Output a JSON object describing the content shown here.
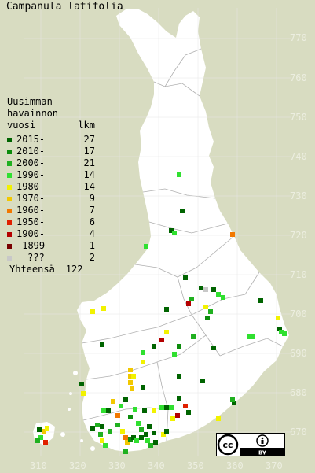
{
  "title": "Campanula latifolia",
  "legend": {
    "heading_lines": [
      "Uusimman",
      "havainnon"
    ],
    "col_year": "vuosi",
    "col_count": "lkm",
    "items": [
      {
        "label": "2015-",
        "count": "27",
        "color": "#006400"
      },
      {
        "label": "2010-",
        "count": "17",
        "color": "#0c8c0c"
      },
      {
        "label": "2000-",
        "count": "21",
        "color": "#20b020"
      },
      {
        "label": "1990-",
        "count": "14",
        "color": "#30e030"
      },
      {
        "label": "1980-",
        "count": "14",
        "color": "#f2f200"
      },
      {
        "label": "1970-",
        "count": "9",
        "color": "#f2c800"
      },
      {
        "label": "1960-",
        "count": "7",
        "color": "#f27800"
      },
      {
        "label": "1950-",
        "count": "6",
        "color": "#e02000"
      },
      {
        "label": "1900-",
        "count": "4",
        "color": "#b40000"
      },
      {
        "label": "-1899",
        "count": "1",
        "color": "#780000"
      },
      {
        "label": "???",
        "count": "2",
        "color": "#c8c8c8"
      }
    ],
    "total_label": "Yhteensä",
    "total_count": "122"
  },
  "y_ticks": [
    "770",
    "760",
    "750",
    "740",
    "730",
    "720",
    "710",
    "700",
    "690",
    "680",
    "670"
  ],
  "x_ticks": [
    "310",
    "320",
    "330",
    "340",
    "350",
    "360",
    "370"
  ],
  "license_badge": {
    "cc": "cc",
    "by": "BY"
  }
}
